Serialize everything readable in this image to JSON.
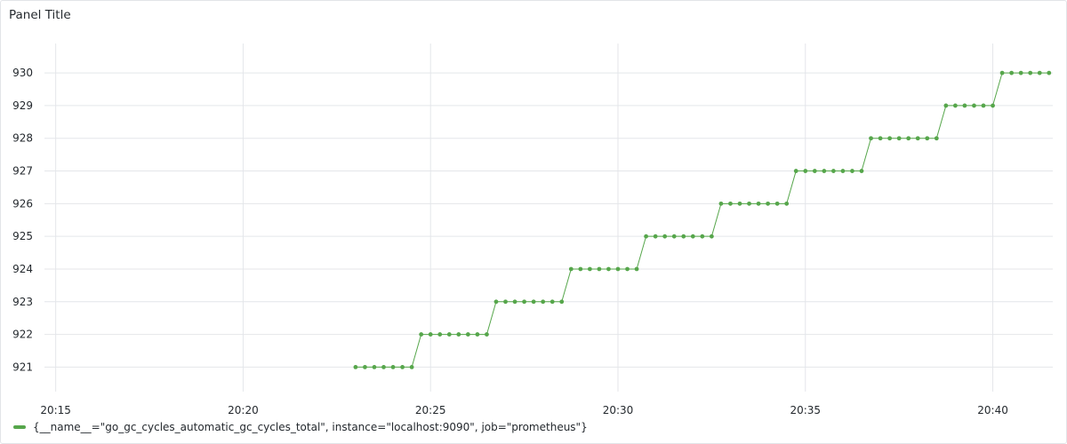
{
  "panel": {
    "title": "Panel Title"
  },
  "chart_data": {
    "type": "line",
    "title": "Panel Title",
    "xlabel": "",
    "ylabel": "",
    "x_range": [
      "20:14.7",
      "20:41.6"
    ],
    "ylim": [
      920.25,
      930.9
    ],
    "x_ticks": [
      "20:15",
      "20:20",
      "20:25",
      "20:30",
      "20:35",
      "20:40"
    ],
    "y_ticks": [
      921,
      922,
      923,
      924,
      925,
      926,
      927,
      928,
      929,
      930
    ],
    "grid": true,
    "legend_placement": "bottom-left",
    "series": [
      {
        "name": "{__name__=\"go_gc_cycles_automatic_gc_cycles_total\", instance=\"localhost:9090\", job=\"prometheus\"}",
        "color": "#56a64b",
        "x": [
          "20:23:00",
          "20:23:15",
          "20:23:30",
          "20:23:45",
          "20:24:00",
          "20:24:15",
          "20:24:30",
          "20:24:45",
          "20:25:00",
          "20:25:15",
          "20:25:30",
          "20:25:45",
          "20:26:00",
          "20:26:15",
          "20:26:30",
          "20:26:45",
          "20:27:00",
          "20:27:15",
          "20:27:30",
          "20:27:45",
          "20:28:00",
          "20:28:15",
          "20:28:30",
          "20:28:45",
          "20:29:00",
          "20:29:15",
          "20:29:30",
          "20:29:45",
          "20:30:00",
          "20:30:15",
          "20:30:30",
          "20:30:45",
          "20:31:00",
          "20:31:15",
          "20:31:30",
          "20:31:45",
          "20:32:00",
          "20:32:15",
          "20:32:30",
          "20:32:45",
          "20:33:00",
          "20:33:15",
          "20:33:30",
          "20:33:45",
          "20:34:00",
          "20:34:15",
          "20:34:30",
          "20:34:45",
          "20:35:00",
          "20:35:15",
          "20:35:30",
          "20:35:45",
          "20:36:00",
          "20:36:15",
          "20:36:30",
          "20:36:45",
          "20:37:00",
          "20:37:15",
          "20:37:30",
          "20:37:45",
          "20:38:00",
          "20:38:15",
          "20:38:30",
          "20:38:45",
          "20:39:00",
          "20:39:15",
          "20:39:30",
          "20:39:45",
          "20:40:00",
          "20:40:15",
          "20:40:30",
          "20:40:45",
          "20:41:00",
          "20:41:15",
          "20:41:30"
        ],
        "values": [
          921,
          921,
          921,
          921,
          921,
          921,
          921,
          922,
          922,
          922,
          922,
          922,
          922,
          922,
          922,
          923,
          923,
          923,
          923,
          923,
          923,
          923,
          923,
          924,
          924,
          924,
          924,
          924,
          924,
          924,
          924,
          925,
          925,
          925,
          925,
          925,
          925,
          925,
          925,
          926,
          926,
          926,
          926,
          926,
          926,
          926,
          926,
          927,
          927,
          927,
          927,
          927,
          927,
          927,
          927,
          928,
          928,
          928,
          928,
          928,
          928,
          928,
          928,
          929,
          929,
          929,
          929,
          929,
          929,
          930,
          930,
          930,
          930,
          930,
          930
        ]
      }
    ]
  }
}
